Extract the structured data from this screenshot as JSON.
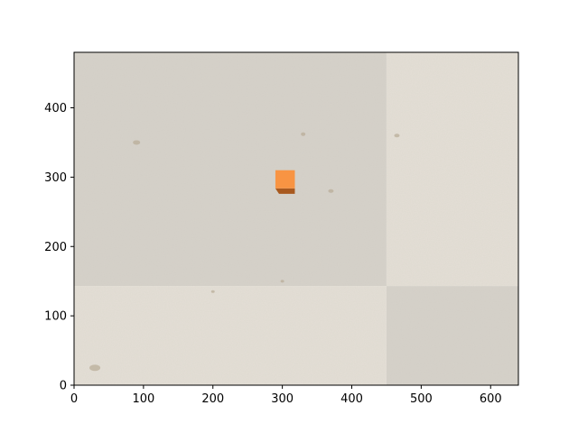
{
  "colors": {
    "tile_dark": "#d6d2ca",
    "tile_light": "#e4dfd6",
    "cube_face": "#f89443",
    "cube_shadow": "#a8591f",
    "axis": "#000000"
  },
  "plot": {
    "x_range": [
      0,
      640
    ],
    "y_range": [
      0,
      480
    ],
    "image_extent": {
      "x": [
        0,
        640
      ],
      "y": [
        0,
        480
      ]
    },
    "tile_split": {
      "x": 450,
      "y": 143
    },
    "tiles": [
      {
        "name": "top-left",
        "x": [
          0,
          450
        ],
        "y": [
          143,
          480
        ],
        "shade": "dark"
      },
      {
        "name": "top-right",
        "x": [
          450,
          640
        ],
        "y": [
          143,
          480
        ],
        "shade": "light"
      },
      {
        "name": "bottom-left",
        "x": [
          0,
          450
        ],
        "y": [
          0,
          143
        ],
        "shade": "light"
      },
      {
        "name": "bottom-right",
        "x": [
          450,
          640
        ],
        "y": [
          0,
          143
        ],
        "shade": "dark"
      }
    ],
    "object": {
      "label": "orange-cube",
      "x": [
        290,
        318
      ],
      "y": [
        276,
        310
      ]
    },
    "x_ticks": [
      0,
      100,
      200,
      300,
      400,
      500,
      600
    ],
    "y_ticks": [
      0,
      100,
      200,
      300,
      400
    ]
  }
}
